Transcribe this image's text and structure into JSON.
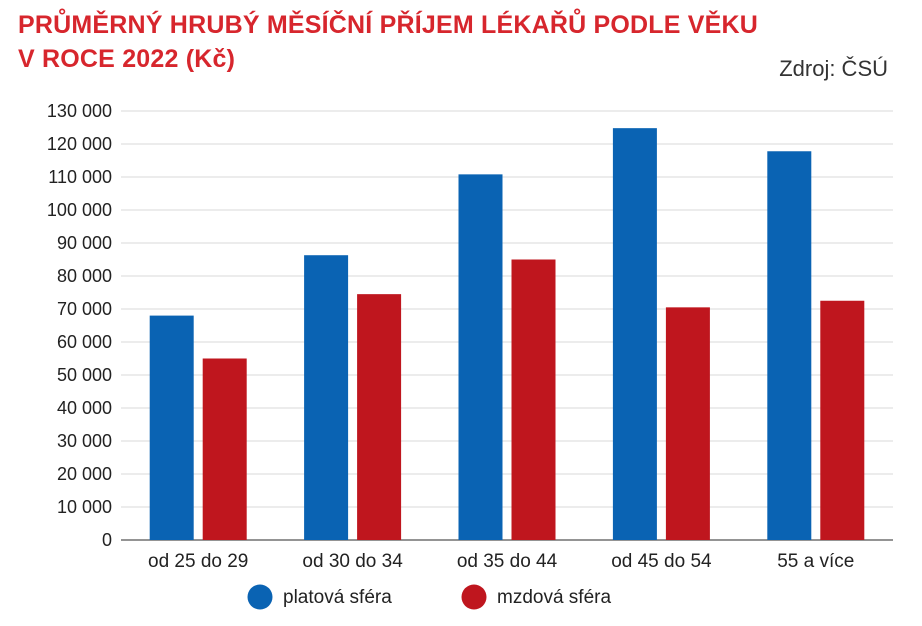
{
  "chart_data": {
    "type": "bar",
    "title_lines": [
      "PRŮMĚRNÝ HRUBÝ MĚSÍČNÍ PŘÍJEM LÉKAŘŮ PODLE VĚKU",
      "V ROCE 2022 (Kč)"
    ],
    "source": "Zdroj: ČSÚ",
    "categories": [
      "od 25 do 29",
      "od 30 do 34",
      "od 35 do 44",
      "od 45 do 54",
      "55 a více"
    ],
    "series": [
      {
        "name": "platová sféra",
        "color": "#0a63b3",
        "values": [
          68000,
          86300,
          110800,
          124800,
          117800
        ]
      },
      {
        "name": "mzdová sféra",
        "color": "#bf161e",
        "values": [
          55000,
          74500,
          85000,
          70500,
          72500
        ]
      }
    ],
    "ylim": [
      0,
      130000
    ],
    "yticks": [
      0,
      10000,
      20000,
      30000,
      40000,
      50000,
      60000,
      70000,
      80000,
      90000,
      100000,
      110000,
      120000,
      130000
    ],
    "ytick_labels": [
      "0",
      "10 000",
      "20 000",
      "30 000",
      "40 000",
      "50 000",
      "60 000",
      "70 000",
      "80 000",
      "90 000",
      "100 000",
      "110 000",
      "120 000",
      "130 000"
    ],
    "grid": true,
    "legend_position": "bottom"
  }
}
